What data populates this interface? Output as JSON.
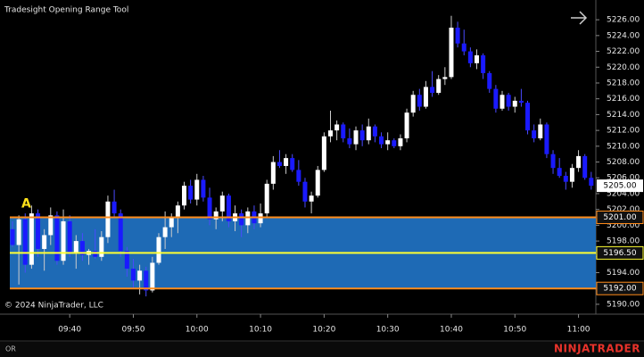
{
  "chart_data": {
    "type": "candlestick",
    "title": "Tradesight Opening Range Tool",
    "copyright": "© 2024 NinjaTrader, LLC",
    "footer_tab": "OR",
    "brand": "NINJATRADER",
    "up_color": "#ffffff",
    "down_color": "#1a1aff",
    "ylim": [
      5188.75,
      5228.5
    ],
    "yticks": [
      {
        "value": 5190,
        "label": "5190.00"
      },
      {
        "value": 5192,
        "label": "5192.00"
      },
      {
        "value": 5194,
        "label": "5194.00"
      },
      {
        "value": 5196,
        "label": "5196.00"
      },
      {
        "value": 5198,
        "label": "5198.00"
      },
      {
        "value": 5200,
        "label": "5200.00"
      },
      {
        "value": 5202,
        "label": "5202.00"
      },
      {
        "value": 5204,
        "label": "5204.00"
      },
      {
        "value": 5206,
        "label": "5206.00"
      },
      {
        "value": 5208,
        "label": "5208.00"
      },
      {
        "value": 5210,
        "label": "5210.00"
      },
      {
        "value": 5212,
        "label": "5212.00"
      },
      {
        "value": 5214,
        "label": "5214.00"
      },
      {
        "value": 5216,
        "label": "5216.00"
      },
      {
        "value": 5218,
        "label": "5218.00"
      },
      {
        "value": 5220,
        "label": "5220.00"
      },
      {
        "value": 5222,
        "label": "5222.00"
      },
      {
        "value": 5224,
        "label": "5224.00"
      },
      {
        "value": 5226,
        "label": "5226.00"
      }
    ],
    "xticks": [
      "09:40",
      "09:50",
      "10:00",
      "10:10",
      "10:20",
      "10:30",
      "10:40",
      "10:50",
      "11:00"
    ],
    "x": [
      "09:31",
      "09:32",
      "09:33",
      "09:34",
      "09:35",
      "09:36",
      "09:37",
      "09:38",
      "09:39",
      "09:40",
      "09:41",
      "09:42",
      "09:43",
      "09:44",
      "09:45",
      "09:46",
      "09:47",
      "09:48",
      "09:49",
      "09:50",
      "09:51",
      "09:52",
      "09:53",
      "09:54",
      "09:55",
      "09:56",
      "09:57",
      "09:58",
      "09:59",
      "10:00",
      "10:01",
      "10:02",
      "10:03",
      "10:04",
      "10:05",
      "10:06",
      "10:07",
      "10:08",
      "10:09",
      "10:10",
      "10:11",
      "10:12",
      "10:13",
      "10:14",
      "10:15",
      "10:16",
      "10:17",
      "10:18",
      "10:19",
      "10:20",
      "10:21",
      "10:22",
      "10:23",
      "10:24",
      "10:25",
      "10:26",
      "10:27",
      "10:28",
      "10:29",
      "10:30",
      "10:31",
      "10:32",
      "10:33",
      "10:34",
      "10:35",
      "10:36",
      "10:37",
      "10:38",
      "10:39",
      "10:40",
      "10:41",
      "10:42",
      "10:43",
      "10:44",
      "10:45",
      "10:46",
      "10:47",
      "10:48",
      "10:49",
      "10:50",
      "10:51",
      "10:52",
      "10:53",
      "10:54",
      "10:55",
      "10:56",
      "10:57",
      "10:58",
      "10:59",
      "11:00",
      "11:01",
      "11:02"
    ],
    "candles": [
      [
        5199.5,
        5200.5,
        5197.25,
        5197.5
      ],
      [
        5197.5,
        5201.25,
        5192.5,
        5200.75
      ],
      [
        5200.75,
        5201.5,
        5194.0,
        5195.0
      ],
      [
        5195.0,
        5202.5,
        5194.5,
        5201.5
      ],
      [
        5201.5,
        5202.0,
        5196.0,
        5197.0
      ],
      [
        5197.0,
        5199.5,
        5194.25,
        5198.75
      ],
      [
        5198.75,
        5202.25,
        5197.5,
        5201.25
      ],
      [
        5201.25,
        5201.75,
        5195.0,
        5195.5
      ],
      [
        5195.5,
        5202.0,
        5195.0,
        5200.5
      ],
      [
        5200.5,
        5201.25,
        5196.0,
        5196.5
      ],
      [
        5196.5,
        5198.75,
        5194.5,
        5198.0
      ],
      [
        5198.0,
        5199.0,
        5195.5,
        5196.25
      ],
      [
        5196.25,
        5197.0,
        5195.0,
        5196.75
      ],
      [
        5196.75,
        5199.5,
        5195.75,
        5196.0
      ],
      [
        5196.0,
        5199.25,
        5195.5,
        5198.5
      ],
      [
        5198.5,
        5203.75,
        5197.75,
        5203.0
      ],
      [
        5203.0,
        5204.5,
        5201.0,
        5201.5
      ],
      [
        5201.5,
        5202.0,
        5196.0,
        5196.75
      ],
      [
        5196.75,
        5197.25,
        5193.5,
        5194.5
      ],
      [
        5194.5,
        5195.75,
        5192.0,
        5193.0
      ],
      [
        5193.0,
        5195.0,
        5191.25,
        5194.25
      ],
      [
        5194.25,
        5194.75,
        5191.0,
        5191.75
      ],
      [
        5191.75,
        5196.0,
        5191.5,
        5195.25
      ],
      [
        5195.25,
        5199.0,
        5195.0,
        5198.5
      ],
      [
        5198.5,
        5201.75,
        5197.0,
        5199.75
      ],
      [
        5199.75,
        5201.5,
        5198.5,
        5201.0
      ],
      [
        5201.0,
        5203.0,
        5199.0,
        5202.5
      ],
      [
        5202.5,
        5205.5,
        5202.0,
        5205.0
      ],
      [
        5205.0,
        5205.75,
        5202.75,
        5203.25
      ],
      [
        5203.25,
        5206.5,
        5202.5,
        5205.75
      ],
      [
        5205.75,
        5206.25,
        5203.0,
        5203.5
      ],
      [
        5203.5,
        5204.75,
        5200.0,
        5200.75
      ],
      [
        5200.75,
        5202.25,
        5199.5,
        5201.75
      ],
      [
        5201.75,
        5204.25,
        5200.5,
        5203.75
      ],
      [
        5203.75,
        5204.0,
        5199.75,
        5200.5
      ],
      [
        5200.5,
        5202.5,
        5199.25,
        5201.5
      ],
      [
        5201.5,
        5202.0,
        5198.5,
        5200.0
      ],
      [
        5200.0,
        5202.25,
        5199.0,
        5201.75
      ],
      [
        5201.75,
        5202.5,
        5199.5,
        5200.25
      ],
      [
        5200.25,
        5202.75,
        5199.75,
        5201.5
      ],
      [
        5201.5,
        5205.75,
        5201.0,
        5205.25
      ],
      [
        5205.25,
        5208.75,
        5204.5,
        5208.0
      ],
      [
        5208.0,
        5209.5,
        5207.25,
        5207.5
      ],
      [
        5207.5,
        5209.0,
        5206.5,
        5208.5
      ],
      [
        5208.5,
        5209.0,
        5206.75,
        5207.0
      ],
      [
        5207.0,
        5208.25,
        5205.0,
        5205.5
      ],
      [
        5205.5,
        5206.0,
        5202.25,
        5203.0
      ],
      [
        5203.0,
        5204.25,
        5201.5,
        5203.75
      ],
      [
        5203.75,
        5207.5,
        5203.5,
        5207.0
      ],
      [
        5207.0,
        5211.75,
        5206.75,
        5211.25
      ],
      [
        5211.25,
        5214.5,
        5210.5,
        5212.0
      ],
      [
        5212.0,
        5213.25,
        5210.75,
        5212.75
      ],
      [
        5212.75,
        5213.0,
        5210.5,
        5211.0
      ],
      [
        5211.0,
        5212.25,
        5209.75,
        5210.25
      ],
      [
        5210.25,
        5212.5,
        5209.5,
        5212.0
      ],
      [
        5212.0,
        5212.75,
        5210.0,
        5210.75
      ],
      [
        5210.75,
        5213.5,
        5210.25,
        5212.5
      ],
      [
        5212.5,
        5212.75,
        5210.5,
        5211.25
      ],
      [
        5211.25,
        5211.75,
        5209.75,
        5210.25
      ],
      [
        5210.25,
        5211.75,
        5209.5,
        5210.75
      ],
      [
        5210.75,
        5211.0,
        5209.75,
        5210.0
      ],
      [
        5210.0,
        5211.5,
        5209.5,
        5211.0
      ],
      [
        5211.0,
        5214.75,
        5210.5,
        5214.25
      ],
      [
        5214.25,
        5217.0,
        5213.75,
        5216.5
      ],
      [
        5216.5,
        5217.25,
        5214.5,
        5215.0
      ],
      [
        5215.0,
        5218.25,
        5214.75,
        5217.5
      ],
      [
        5217.5,
        5219.5,
        5216.25,
        5216.75
      ],
      [
        5216.75,
        5219.0,
        5216.5,
        5218.5
      ],
      [
        5218.5,
        5220.0,
        5217.75,
        5218.75
      ],
      [
        5218.75,
        5226.5,
        5218.5,
        5225.0
      ],
      [
        5225.0,
        5225.75,
        5222.5,
        5223.0
      ],
      [
        5223.0,
        5224.75,
        5221.5,
        5222.0
      ],
      [
        5222.0,
        5222.5,
        5220.0,
        5220.5
      ],
      [
        5220.5,
        5222.25,
        5219.75,
        5221.5
      ],
      [
        5221.5,
        5221.75,
        5218.5,
        5219.25
      ],
      [
        5219.25,
        5219.5,
        5216.75,
        5217.25
      ],
      [
        5217.25,
        5217.75,
        5214.25,
        5214.75
      ],
      [
        5214.75,
        5217.0,
        5214.5,
        5216.5
      ],
      [
        5216.5,
        5216.75,
        5214.5,
        5215.0
      ],
      [
        5215.0,
        5216.25,
        5214.25,
        5215.75
      ],
      [
        5215.75,
        5217.25,
        5215.0,
        5215.5
      ],
      [
        5215.5,
        5215.75,
        5211.5,
        5212.0
      ],
      [
        5212.0,
        5212.75,
        5210.5,
        5211.0
      ],
      [
        5211.0,
        5213.5,
        5210.75,
        5212.75
      ],
      [
        5212.75,
        5213.0,
        5208.5,
        5209.0
      ],
      [
        5209.0,
        5209.5,
        5206.5,
        5207.25
      ],
      [
        5207.25,
        5208.5,
        5206.0,
        5206.25
      ],
      [
        5206.25,
        5206.75,
        5204.5,
        5205.5
      ],
      [
        5205.5,
        5207.75,
        5204.75,
        5207.25
      ],
      [
        5207.25,
        5209.5,
        5206.75,
        5208.75
      ],
      [
        5208.75,
        5209.0,
        5205.75,
        5206.0
      ],
      [
        5206.0,
        5206.75,
        5204.5,
        5205.0
      ]
    ],
    "last_price": {
      "value": 5205,
      "label": "5205.00"
    },
    "opening_range": {
      "label": "A",
      "fill": "#1e6ab5",
      "high": {
        "value": 5201,
        "label": "5201.00",
        "color": "#ff8c1a"
      },
      "mid": {
        "value": 5196.5,
        "label": "5196.50",
        "color": "#ffff33"
      },
      "low": {
        "value": 5192,
        "label": "5192.00",
        "color": "#ff8c1a"
      }
    }
  }
}
